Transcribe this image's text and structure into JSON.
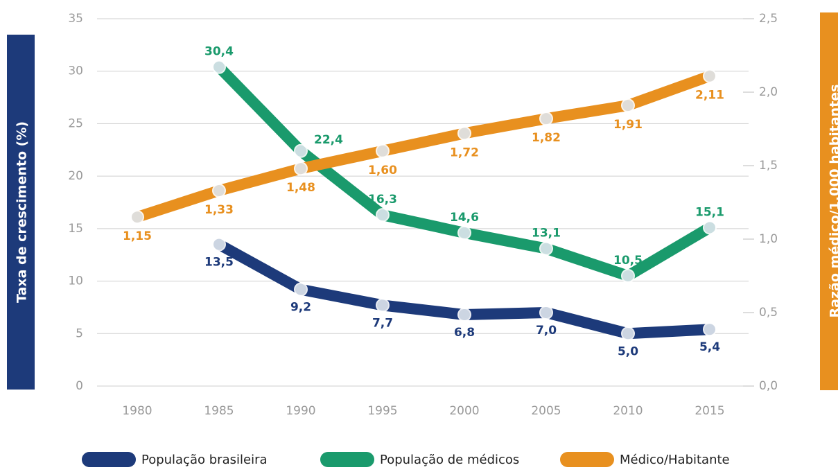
{
  "chart_data": {
    "type": "line",
    "y_label": "Taxa de crescimento (%)",
    "y2_label": "Razão médico/1.000 habitantes",
    "categories": [
      "1980",
      "1985",
      "1990",
      "1995",
      "2000",
      "2005",
      "2010",
      "2015"
    ],
    "ylim": [
      0,
      35
    ],
    "yticks": [
      0,
      5,
      10,
      15,
      20,
      25,
      30,
      35
    ],
    "y2lim": [
      0,
      2.5
    ],
    "y2ticks": [
      {
        "value": 0,
        "label": "0,0"
      },
      {
        "value": 0.5,
        "label": "0,5"
      },
      {
        "value": 1,
        "label": "1,0"
      },
      {
        "value": 1.5,
        "label": "1,5"
      },
      {
        "value": 2,
        "label": "2,0"
      },
      {
        "value": 2.5,
        "label": "2,5"
      }
    ],
    "grid": true,
    "series": [
      {
        "name": "População brasileira",
        "color": "#1d3a7a",
        "values": [
          null,
          13.5,
          9.2,
          7.7,
          6.8,
          7.0,
          5.0,
          5.4
        ],
        "value_labels": [
          null,
          "13,5",
          "9,2",
          "7,7",
          "6,8",
          "7,0",
          "5,0",
          "5,4"
        ]
      },
      {
        "name": "População de médicos",
        "color": "#1a9a6c",
        "values": [
          null,
          30.4,
          22.4,
          16.3,
          14.6,
          13.1,
          10.5,
          15.1
        ],
        "value_labels": [
          null,
          "30,4",
          "22,4",
          "16,3",
          "14,6",
          "13,1",
          "10,5",
          "15,1"
        ]
      },
      {
        "name": "Médico/Habitante",
        "color": "#e8901f",
        "axis": "y2",
        "values": [
          1.15,
          1.33,
          1.48,
          1.6,
          1.72,
          1.82,
          1.91,
          2.11
        ],
        "value_labels": [
          "1,15",
          "1,33",
          "1,48",
          "1,60",
          "1,72",
          "1,82",
          "1,91",
          "2,11"
        ]
      }
    ]
  }
}
